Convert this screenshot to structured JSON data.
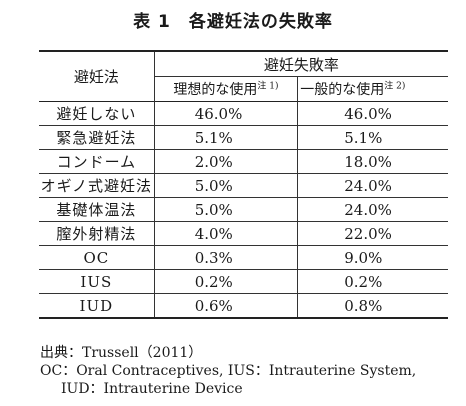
{
  "title": {
    "label": "表 1",
    "text": "各避妊法の失敗率"
  },
  "table": {
    "row_header": "避妊法",
    "group_header": "避妊失敗率",
    "col_perfect": "理想的な使用",
    "col_perfect_note": "注 1)",
    "col_typical": "一般的な使用",
    "col_typical_note": "注 2)",
    "rows": [
      {
        "method": "避妊しない",
        "perfect": "46.0%",
        "typical": "46.0%"
      },
      {
        "method": "緊急避妊法",
        "perfect": "5.1%",
        "typical": "5.1%"
      },
      {
        "method": "コンドーム",
        "perfect": "2.0%",
        "typical": "18.0%"
      },
      {
        "method": "オギノ式避妊法",
        "perfect": "5.0%",
        "typical": "24.0%"
      },
      {
        "method": "基礎体温法",
        "perfect": "5.0%",
        "typical": "24.0%"
      },
      {
        "method": "膣外射精法",
        "perfect": "4.0%",
        "typical": "22.0%"
      },
      {
        "method": "OC",
        "perfect": "0.3%",
        "typical": "9.0%"
      },
      {
        "method": "IUS",
        "perfect": "0.2%",
        "typical": "0.2%"
      },
      {
        "method": "IUD",
        "perfect": "0.6%",
        "typical": "0.8%"
      }
    ]
  },
  "notes": {
    "source": "出典：Trussell（2011）",
    "abbr1": "OC：Oral Contraceptives,  IUS：Intrauterine System,",
    "abbr2": "IUD：Intrauterine Device"
  }
}
